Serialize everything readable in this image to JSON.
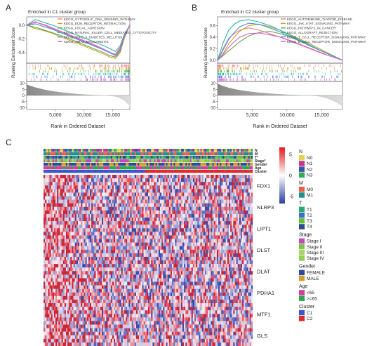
{
  "panels": {
    "A": {
      "letter": "A",
      "title": "Enriched in C1 cluster group",
      "ylabel": "Running Enrichment Score",
      "xlabel": "Rank in Ordered Dataset",
      "es_ticks": [
        "0.0",
        "-0.2",
        "-0.4"
      ],
      "rank_ticks": [
        "10",
        "5",
        "0",
        "-5",
        "-10"
      ],
      "x_ticks": [
        "5,000",
        "10,000",
        "15,000"
      ],
      "legend": [
        {
          "label": "KEGG_CYTOSOLIC_DNA_SENSING_PATHWAY",
          "color": "#f08080"
        },
        {
          "label": "KEGG_ECM_RECEPTOR_INTERACTION",
          "color": "#c9a227"
        },
        {
          "label": "KEGG_FOCAL_ADHESION",
          "color": "#6aa84f"
        },
        {
          "label": "KEGG_NATURAL_KILLER_CELL_MEDIATED_CYTOTOXICITY",
          "color": "#2ab7a9"
        },
        {
          "label": "KEGG_TYPE_II_DIABETES_MELLITUS",
          "color": "#4a90d9"
        },
        {
          "label": "KEGG_VIRAL_MYOCARDITIS",
          "color": "#d65fd6"
        }
      ]
    },
    "B": {
      "letter": "B",
      "title": "Enriched in C2 cluster group",
      "ylabel": "Running Enrichment Score",
      "xlabel": "Rank in Ordered Dataset",
      "es_ticks": [
        "0.6",
        "0.4",
        "0.2",
        "0.0"
      ],
      "rank_ticks": [
        "10",
        "5",
        "0",
        "-5",
        "-10"
      ],
      "x_ticks": [
        "5,000",
        "10,000",
        "15,000"
      ],
      "legend": [
        {
          "label": "KEGG_AUTOIMMUNE_THYROID_DISEASE",
          "color": "#f08080"
        },
        {
          "label": "KEGG_JAK_STAT_SIGNALING_PATHWAY",
          "color": "#c9a227"
        },
        {
          "label": "KEGG_PATHWAYS_IN_CANCER",
          "color": "#6aa84f"
        },
        {
          "label": "KEGG_ALLOGRAFT_REJECTION",
          "color": "#2ab7a9"
        },
        {
          "label": "KEGG_T_CELL_RECEPTOR_SIGNALING_PATHWAY",
          "color": "#4a90d9"
        },
        {
          "label": "KEGG_B_CELL_RECEPTOR_SIGNALING_PATHWAY",
          "color": "#d65fd6"
        }
      ]
    },
    "C": {
      "letter": "C",
      "annotation_rows": [
        "N",
        "M",
        "T*",
        "Stage*",
        "Gender",
        "Age",
        "Cluster"
      ],
      "genes": [
        "FDX1",
        "NLRP3",
        "LIPT1",
        "DLST",
        "DLAT",
        "PDHA1",
        "MTF1",
        "GLS"
      ],
      "colorbar_ticks": [
        "5",
        "0",
        "-5"
      ]
    }
  },
  "heatmap_legend": [
    {
      "title": "N",
      "items": [
        {
          "label": "N0",
          "color": "#e6d44a"
        },
        {
          "label": "N1",
          "color": "#c2378f"
        },
        {
          "label": "N2",
          "color": "#3a55a8"
        },
        {
          "label": "N3",
          "color": "#3aaa5a"
        }
      ]
    },
    {
      "title": "M",
      "items": [
        {
          "label": "M0",
          "color": "#e8604c"
        },
        {
          "label": "M1",
          "color": "#1f8f8f"
        }
      ]
    },
    {
      "title": "T",
      "items": [
        {
          "label": "T1",
          "color": "#2aa876"
        },
        {
          "label": "T2",
          "color": "#3a6fc4"
        },
        {
          "label": "T3",
          "color": "#6abf3a"
        },
        {
          "label": "T4",
          "color": "#2c4a8c"
        }
      ]
    },
    {
      "title": "Stage",
      "items": [
        {
          "label": "Stage I",
          "color": "#c24ab0"
        },
        {
          "label": "Stage II",
          "color": "#7fc24a"
        },
        {
          "label": "Stage III",
          "color": "#a9d46a"
        },
        {
          "label": "Stage IV",
          "color": "#8fcf5a"
        }
      ]
    },
    {
      "title": "Gender",
      "items": [
        {
          "label": "FEMALE",
          "color": "#2b4a9a"
        },
        {
          "label": "MALE",
          "color": "#d49a2b"
        }
      ]
    },
    {
      "title": "Age",
      "items": [
        {
          "label": "<65",
          "color": "#d63aa0"
        },
        {
          "label": ">=65",
          "color": "#2aa84a"
        }
      ]
    },
    {
      "title": "Cluster",
      "items": [
        {
          "label": "C1",
          "color": "#3a55c8"
        },
        {
          "label": "C2",
          "color": "#e02a2a"
        }
      ]
    }
  ],
  "chart_data": [
    {
      "type": "line",
      "title": "Enriched in C1 cluster group",
      "xlabel": "Rank in Ordered Dataset",
      "ylabel": "Running Enrichment Score",
      "xlim": [
        0,
        18000
      ],
      "ylim": [
        -0.55,
        0.12
      ],
      "x": [
        0,
        1500,
        3000,
        4500,
        6000,
        7500,
        9000,
        10500,
        12000,
        13500,
        14500,
        15500,
        16300,
        17000,
        18000
      ],
      "series": [
        {
          "name": "KEGG_CYTOSOLIC_DNA_SENSING_PATHWAY",
          "values": [
            0,
            0.05,
            0.0,
            -0.05,
            -0.1,
            -0.15,
            -0.2,
            -0.25,
            -0.3,
            -0.36,
            -0.4,
            -0.42,
            -0.32,
            -0.15,
            0
          ]
        },
        {
          "name": "KEGG_ECM_RECEPTOR_INTERACTION",
          "values": [
            0,
            -0.05,
            -0.08,
            -0.12,
            -0.17,
            -0.22,
            -0.27,
            -0.32,
            -0.37,
            -0.42,
            -0.46,
            -0.48,
            -0.4,
            -0.2,
            0
          ]
        },
        {
          "name": "KEGG_FOCAL_ADHESION",
          "values": [
            0,
            -0.03,
            -0.07,
            -0.11,
            -0.15,
            -0.2,
            -0.25,
            -0.3,
            -0.35,
            -0.4,
            -0.44,
            -0.46,
            -0.38,
            -0.18,
            0
          ]
        },
        {
          "name": "KEGG_NATURAL_KILLER_CELL_MEDIATED_CYTOTOXICITY",
          "values": [
            0,
            0.08,
            0.04,
            0.0,
            -0.05,
            -0.1,
            -0.15,
            -0.2,
            -0.25,
            -0.3,
            -0.34,
            -0.38,
            -0.3,
            -0.14,
            0
          ]
        },
        {
          "name": "KEGG_TYPE_II_DIABETES_MELLITUS",
          "values": [
            0,
            0.02,
            -0.02,
            -0.06,
            -0.11,
            -0.16,
            -0.21,
            -0.26,
            -0.31,
            -0.36,
            -0.4,
            -0.44,
            -0.36,
            -0.17,
            0
          ]
        },
        {
          "name": "KEGG_VIRAL_MYOCARDITIS",
          "values": [
            0,
            0.04,
            0.01,
            -0.04,
            -0.09,
            -0.14,
            -0.19,
            -0.24,
            -0.29,
            -0.35,
            -0.39,
            -0.43,
            -0.34,
            -0.16,
            0
          ]
        }
      ]
    },
    {
      "type": "line",
      "title": "Enriched in C2 cluster group",
      "xlabel": "Rank in Ordered Dataset",
      "ylabel": "Running Enrichment Score",
      "xlim": [
        0,
        18000
      ],
      "ylim": [
        -0.05,
        0.75
      ],
      "x": [
        0,
        800,
        1600,
        2400,
        3200,
        4500,
        6000,
        7500,
        9000,
        10500,
        12000,
        13500,
        15000,
        16500,
        18000
      ],
      "series": [
        {
          "name": "KEGG_AUTOIMMUNE_THYROID_DISEASE",
          "values": [
            0,
            0.2,
            0.38,
            0.46,
            0.52,
            0.56,
            0.52,
            0.46,
            0.4,
            0.33,
            0.26,
            0.19,
            0.12,
            0.06,
            0
          ]
        },
        {
          "name": "KEGG_JAK_STAT_SIGNALING_PATHWAY",
          "values": [
            0,
            0.12,
            0.28,
            0.4,
            0.5,
            0.6,
            0.62,
            0.58,
            0.52,
            0.44,
            0.36,
            0.27,
            0.18,
            0.09,
            0
          ]
        },
        {
          "name": "KEGG_PATHWAYS_IN_CANCER",
          "values": [
            0,
            0.08,
            0.16,
            0.24,
            0.32,
            0.42,
            0.48,
            0.5,
            0.46,
            0.4,
            0.32,
            0.24,
            0.16,
            0.08,
            0
          ]
        },
        {
          "name": "KEGG_ALLOGRAFT_REJECTION",
          "values": [
            0,
            0.3,
            0.52,
            0.62,
            0.68,
            0.7,
            0.66,
            0.6,
            0.52,
            0.43,
            0.34,
            0.25,
            0.16,
            0.08,
            0
          ]
        },
        {
          "name": "KEGG_T_CELL_RECEPTOR_SIGNALING_PATHWAY",
          "values": [
            0,
            0.18,
            0.36,
            0.48,
            0.58,
            0.64,
            0.62,
            0.56,
            0.49,
            0.41,
            0.33,
            0.24,
            0.16,
            0.08,
            0
          ]
        },
        {
          "name": "KEGG_B_CELL_RECEPTOR_SIGNALING_PATHWAY",
          "values": [
            0,
            0.1,
            0.22,
            0.32,
            0.4,
            0.46,
            0.47,
            0.44,
            0.4,
            0.34,
            0.27,
            0.2,
            0.13,
            0.06,
            0
          ]
        }
      ]
    },
    {
      "type": "heatmap",
      "rows": [
        "FDX1",
        "NLRP3",
        "LIPT1",
        "DLST",
        "DLAT",
        "PDHA1",
        "MTF1",
        "GLS"
      ],
      "annotation_rows": [
        "N",
        "M",
        "T*",
        "Stage*",
        "Gender",
        "Age",
        "Cluster"
      ],
      "color_range": [
        -5,
        5
      ]
    }
  ]
}
